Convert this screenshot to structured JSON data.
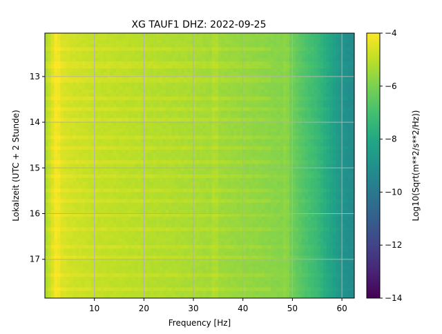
{
  "chart_data": {
    "type": "heatmap",
    "title": "XG TAUF1  DHZ: 2022-09-25",
    "xlabel": "Frequency [Hz]",
    "ylabel": "Lokalzeit (UTC + 2 Stunde)",
    "xlim": [
      0,
      62.5
    ],
    "ylim": [
      12.05,
      17.85
    ],
    "y_inverted": true,
    "x_ticks": [
      10,
      20,
      30,
      40,
      50,
      60
    ],
    "y_ticks": [
      13,
      14,
      15,
      16,
      17
    ],
    "grid": true,
    "colormap": "viridis",
    "colorbar": {
      "label": "Log10(Sqrt(m**2/s**2/Hz))",
      "range": [
        -14,
        -4
      ],
      "ticks": [
        -4,
        -6,
        -8,
        -10,
        -12,
        -14
      ],
      "tick_labels": [
        "−4",
        "−6",
        "−8",
        "−10",
        "−12",
        "−14"
      ]
    },
    "spectrum_profile": {
      "frequency_hz": [
        0,
        2,
        3,
        5,
        10,
        20,
        30,
        40,
        45,
        48,
        50,
        52,
        55,
        58,
        60,
        62.5
      ],
      "log10_amplitude": [
        -5.4,
        -4.3,
        -4.5,
        -4.7,
        -4.9,
        -5.1,
        -5.3,
        -5.6,
        -5.75,
        -5.85,
        -6.2,
        -6.7,
        -7.3,
        -8.2,
        -8.9,
        -9.3
      ]
    },
    "horizontal_bands_hour": [
      12.4,
      12.75,
      13.05,
      13.45,
      13.7,
      13.95,
      14.35,
      14.55,
      14.9,
      15.2,
      15.5,
      15.75,
      16.05,
      16.35,
      16.7,
      16.95,
      17.35,
      17.65
    ],
    "vertical_lines_hz": [
      2.3,
      34.5,
      48.5
    ]
  }
}
